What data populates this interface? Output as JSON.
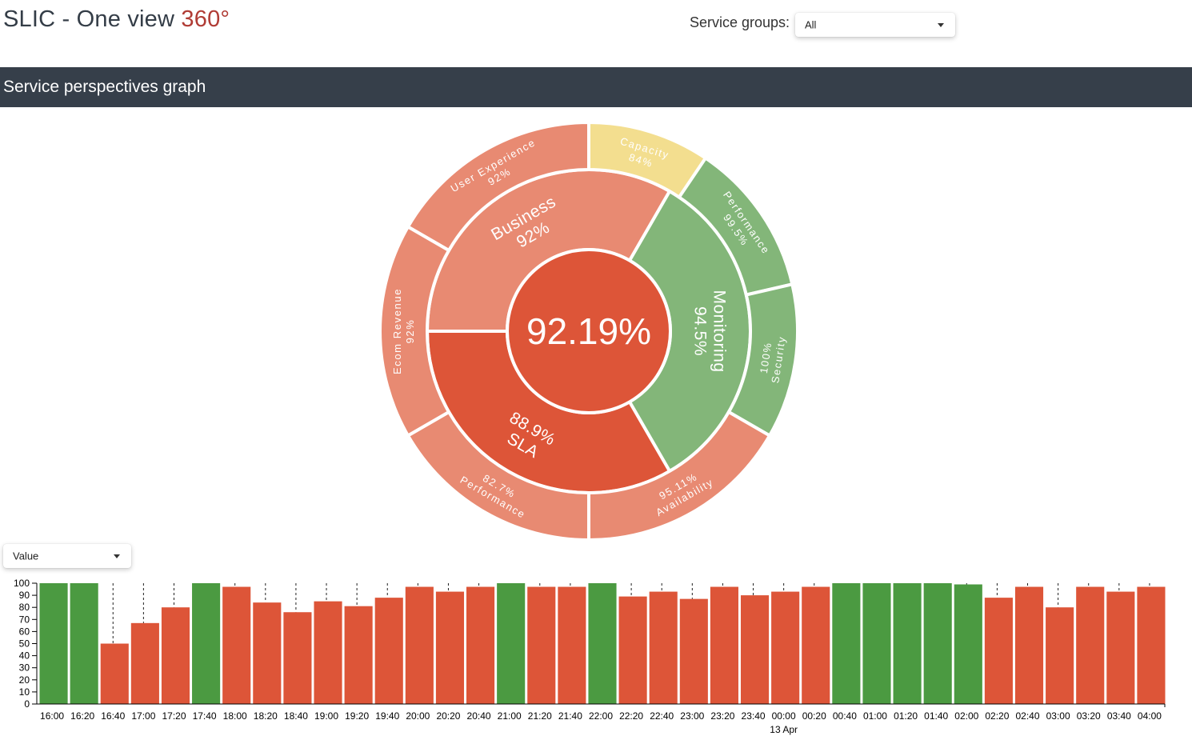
{
  "header": {
    "title": "SLIC - One view",
    "title_accent": "360°",
    "service_groups_label": "Service groups:",
    "service_groups_value": "All"
  },
  "section": {
    "title": "Service perspectives graph"
  },
  "colors": {
    "red": "#dd5538",
    "light_red": "#e88a72",
    "green": "#83b679",
    "yellow": "#f3de8f",
    "bar_green": "#4b9a41",
    "bar_red": "#dd5538",
    "header_bar": "#363f4a",
    "title_accent": "#b03c35"
  },
  "sunburst": {
    "center": {
      "label": "92.19%",
      "color": "red"
    },
    "inner": [
      {
        "name": "Business",
        "value": "92%",
        "color": "light_red",
        "span_deg": 120
      },
      {
        "name": "Monitoring",
        "value": "94.5%",
        "color": "green",
        "span_deg": 120
      },
      {
        "name": "SLA",
        "value": "88.9%",
        "color": "red",
        "span_deg": 120
      }
    ],
    "outer": [
      {
        "name": "User Experience",
        "value": "92%",
        "color": "light_red",
        "parent": "Business",
        "span_deg": 60
      },
      {
        "name": "Capacity",
        "value": "84%",
        "color": "yellow",
        "parent": "Monitoring",
        "span_deg": 34
      },
      {
        "name": "Performance",
        "value": "99.5%",
        "color": "green",
        "parent": "Monitoring",
        "span_deg": 43
      },
      {
        "name": "Security",
        "value": "100%",
        "color": "green",
        "parent": "Monitoring",
        "span_deg": 43
      },
      {
        "name": "Availability",
        "value": "95.11%",
        "color": "light_red",
        "parent": "SLA",
        "span_deg": 60
      },
      {
        "name": "Performance",
        "value": "82.7%",
        "color": "light_red",
        "parent": "SLA",
        "span_deg": 60
      },
      {
        "name": "Ecom Revenue",
        "value": "92%",
        "color": "light_red",
        "parent": "Business",
        "span_deg": 60
      }
    ]
  },
  "metric_select": {
    "value": "Value"
  },
  "chart_data": {
    "type": "bar",
    "ylim": [
      0,
      100
    ],
    "yticks": [
      0,
      10,
      20,
      30,
      40,
      50,
      60,
      70,
      80,
      90,
      100
    ],
    "x_sublabel": "13 Apr",
    "categories": [
      "16:00",
      "16:20",
      "16:40",
      "17:00",
      "17:20",
      "17:40",
      "18:00",
      "18:20",
      "18:40",
      "19:00",
      "19:20",
      "19:40",
      "20:00",
      "20:20",
      "20:40",
      "21:00",
      "21:20",
      "21:40",
      "22:00",
      "22:20",
      "22:40",
      "23:00",
      "23:20",
      "23:40",
      "00:00",
      "00:20",
      "00:40",
      "01:00",
      "01:20",
      "01:40",
      "02:00",
      "02:20",
      "02:40",
      "03:00",
      "03:20",
      "03:40",
      "04:00"
    ],
    "values": [
      100,
      100,
      50,
      67,
      80,
      100,
      97,
      84,
      76,
      85,
      81,
      88,
      97,
      93,
      97,
      100,
      97,
      97,
      100,
      89,
      93,
      87,
      97,
      90,
      93,
      97,
      100,
      100,
      100,
      100,
      99,
      88,
      97,
      80,
      97,
      93,
      97
    ],
    "status": [
      "green",
      "green",
      "red",
      "red",
      "red",
      "green",
      "red",
      "red",
      "red",
      "red",
      "red",
      "red",
      "red",
      "red",
      "red",
      "green",
      "red",
      "red",
      "green",
      "red",
      "red",
      "red",
      "red",
      "red",
      "red",
      "red",
      "green",
      "green",
      "green",
      "green",
      "green",
      "red",
      "red",
      "red",
      "red",
      "red",
      "red"
    ]
  }
}
